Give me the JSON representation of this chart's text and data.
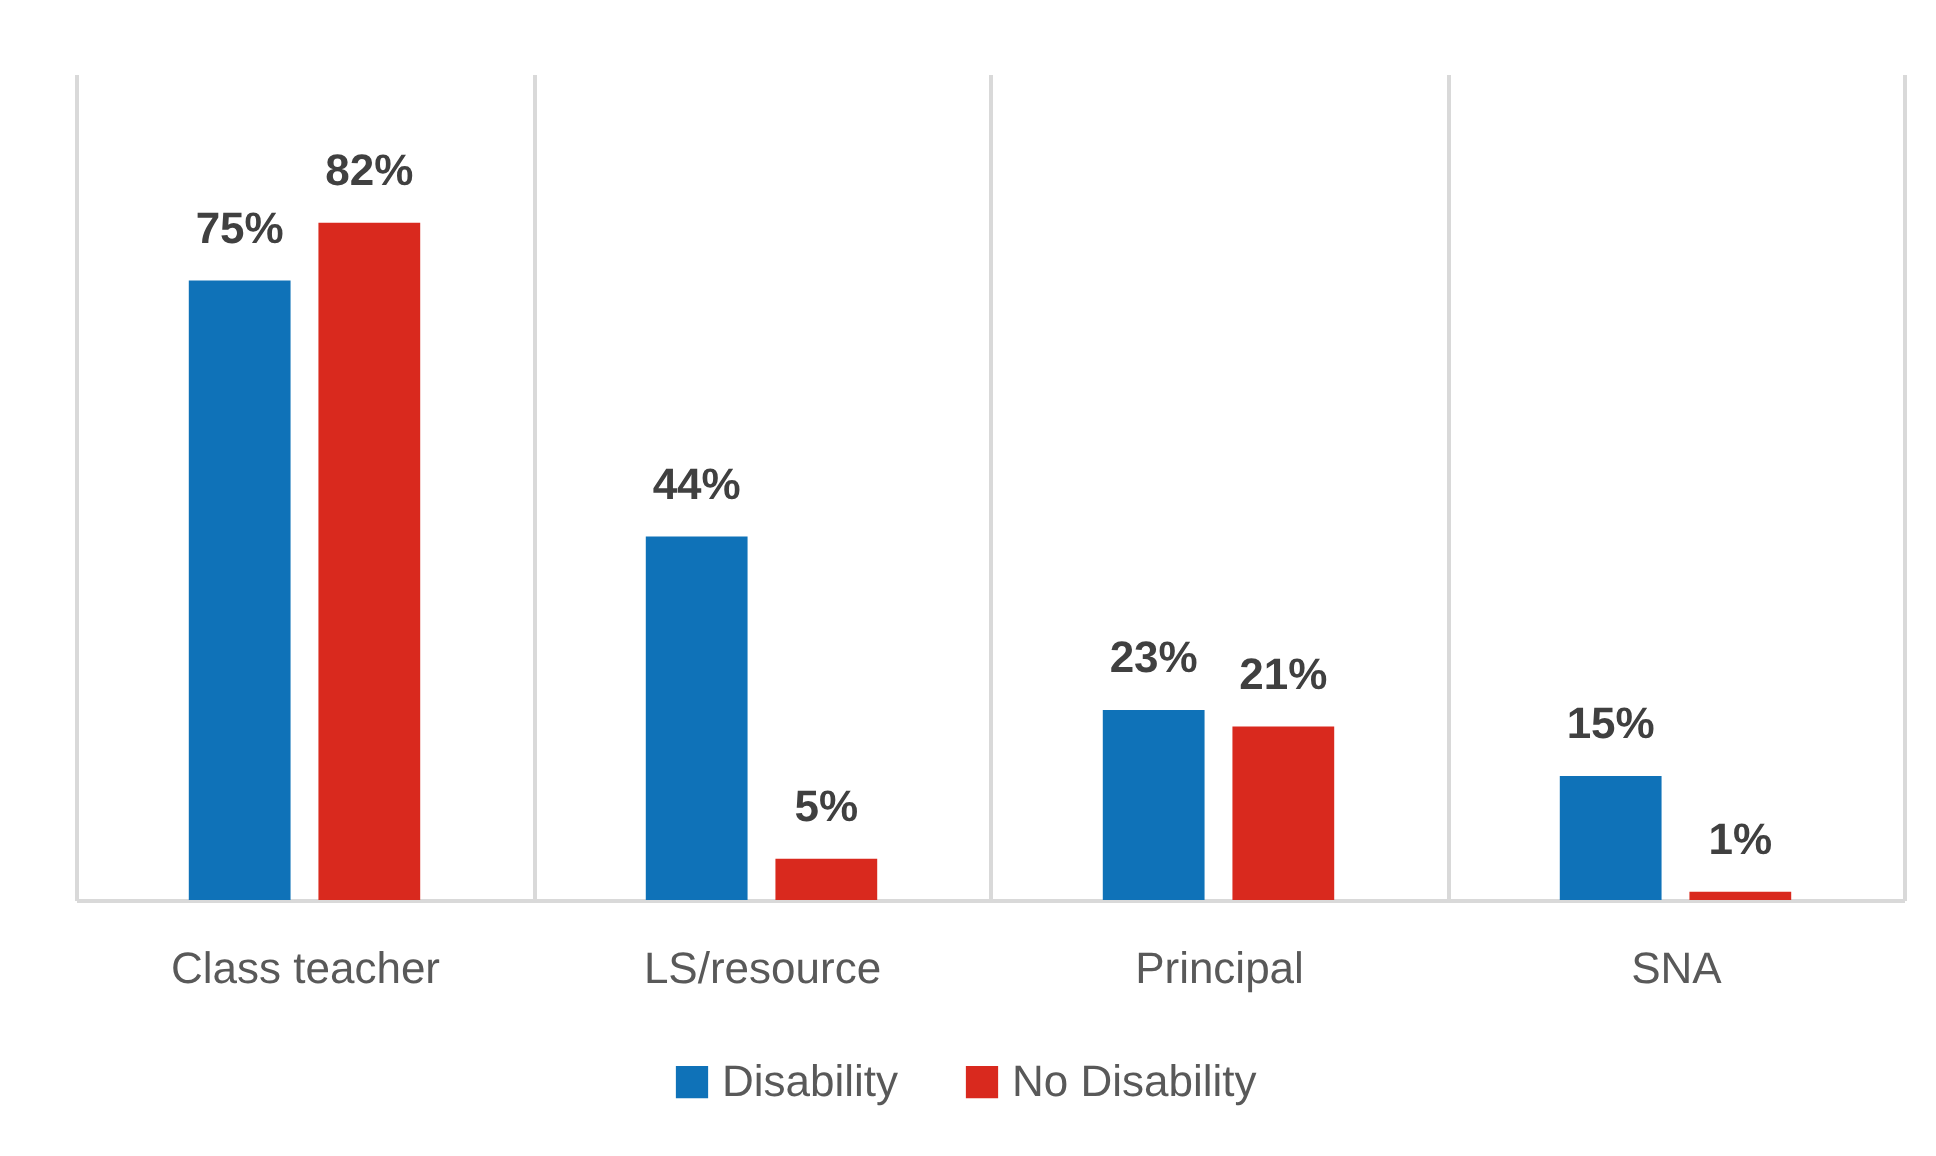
{
  "chart_data": {
    "type": "bar",
    "categories": [
      "Class teacher",
      "LS/resource",
      "Principal",
      "SNA"
    ],
    "series": [
      {
        "name": "Disability",
        "color": "#0f72b8",
        "values": [
          75,
          44,
          23,
          15
        ],
        "value_labels": [
          "75%",
          "44%",
          "23%",
          "15%"
        ]
      },
      {
        "name": "No Disability",
        "color": "#d9291e",
        "values": [
          82,
          5,
          21,
          1
        ],
        "value_labels": [
          "82%",
          "5%",
          "21%",
          "1%"
        ]
      }
    ],
    "ylim": [
      0,
      100
    ],
    "grid": "x",
    "legend": "bottom",
    "tick_labels": "x"
  }
}
